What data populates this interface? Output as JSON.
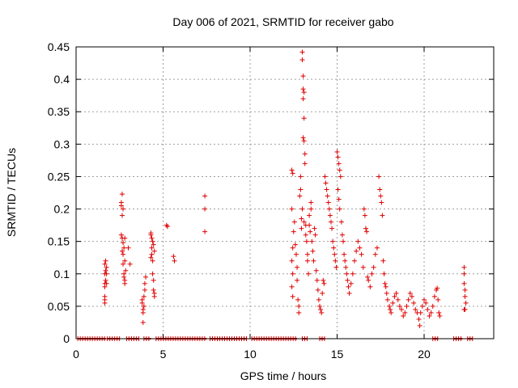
{
  "chart_data": {
    "type": "scatter",
    "title": "Day 006 of 2021, SRMTID for receiver gabo",
    "xlabel": "GPS time / hours",
    "ylabel": "SRMTID / TECUs",
    "xlim": [
      0,
      24
    ],
    "ylim": [
      0,
      0.45
    ],
    "xticks": [
      0,
      5,
      10,
      15,
      20
    ],
    "yticks": [
      0,
      0.05,
      0.1,
      0.15,
      0.2,
      0.25,
      0.3,
      0.35,
      0.4,
      0.45
    ],
    "ytick_labels": [
      "0",
      "0.05",
      "0.1",
      "0.15",
      "0.2",
      "0.25",
      "0.3",
      "0.35",
      "0.4",
      "0.45"
    ],
    "grid": true,
    "marker": "+",
    "color": "#e00000",
    "zero_runs": [
      [
        0.1,
        1.7
      ],
      [
        1.8,
        2.5
      ],
      [
        2.9,
        3.6
      ],
      [
        3.9,
        4.3
      ],
      [
        4.6,
        7.5
      ],
      [
        7.7,
        9.8
      ],
      [
        10.1,
        12.7
      ],
      [
        13.0,
        13.3
      ],
      [
        14.0,
        14.3
      ],
      [
        20.5,
        20.8
      ],
      [
        21.7,
        22.2
      ],
      [
        22.5,
        22.8
      ]
    ],
    "points": [
      [
        1.65,
        0.06
      ],
      [
        1.65,
        0.08
      ],
      [
        1.65,
        0.085
      ],
      [
        1.65,
        0.1
      ],
      [
        1.65,
        0.115
      ],
      [
        1.65,
        0.055
      ],
      [
        1.65,
        0.065
      ],
      [
        1.7,
        0.09
      ],
      [
        1.7,
        0.105
      ],
      [
        1.7,
        0.12
      ],
      [
        1.75,
        0.085
      ],
      [
        1.75,
        0.1
      ],
      [
        1.75,
        0.11
      ],
      [
        2.6,
        0.205
      ],
      [
        2.6,
        0.21
      ],
      [
        2.65,
        0.223
      ],
      [
        2.65,
        0.19
      ],
      [
        2.6,
        0.16
      ],
      [
        2.65,
        0.155
      ],
      [
        2.7,
        0.148
      ],
      [
        2.7,
        0.13
      ],
      [
        2.7,
        0.115
      ],
      [
        2.75,
        0.1
      ],
      [
        2.75,
        0.095
      ],
      [
        2.8,
        0.09
      ],
      [
        2.8,
        0.085
      ],
      [
        2.7,
        0.2
      ],
      [
        2.8,
        0.12
      ],
      [
        2.85,
        0.105
      ],
      [
        2.65,
        0.135
      ],
      [
        2.75,
        0.14
      ],
      [
        2.8,
        0.155
      ],
      [
        3.0,
        0.14
      ],
      [
        3.1,
        0.115
      ],
      [
        3.8,
        0.06
      ],
      [
        3.8,
        0.055
      ],
      [
        3.85,
        0.045
      ],
      [
        3.85,
        0.025
      ],
      [
        3.9,
        0.065
      ],
      [
        3.95,
        0.085
      ],
      [
        3.95,
        0.075
      ],
      [
        3.9,
        0.05
      ],
      [
        4.0,
        0.095
      ],
      [
        3.85,
        0.04
      ],
      [
        4.3,
        0.163
      ],
      [
        4.3,
        0.16
      ],
      [
        4.35,
        0.14
      ],
      [
        4.35,
        0.13
      ],
      [
        4.4,
        0.12
      ],
      [
        4.4,
        0.1
      ],
      [
        4.45,
        0.09
      ],
      [
        4.45,
        0.075
      ],
      [
        4.5,
        0.07
      ],
      [
        4.5,
        0.065
      ],
      [
        4.4,
        0.15
      ],
      [
        4.45,
        0.145
      ],
      [
        4.5,
        0.135
      ],
      [
        4.3,
        0.125
      ],
      [
        4.35,
        0.155
      ],
      [
        5.2,
        0.175
      ],
      [
        5.25,
        0.173
      ],
      [
        5.6,
        0.127
      ],
      [
        5.65,
        0.12
      ],
      [
        7.4,
        0.22
      ],
      [
        7.4,
        0.2
      ],
      [
        7.4,
        0.165
      ],
      [
        12.4,
        0.26
      ],
      [
        12.45,
        0.255
      ],
      [
        12.4,
        0.2
      ],
      [
        12.45,
        0.14
      ],
      [
        12.4,
        0.12
      ],
      [
        12.45,
        0.1
      ],
      [
        12.4,
        0.08
      ],
      [
        12.45,
        0.065
      ],
      [
        12.5,
        0.165
      ],
      [
        12.55,
        0.18
      ],
      [
        12.6,
        0.145
      ],
      [
        12.65,
        0.13
      ],
      [
        12.7,
        0.11
      ],
      [
        12.7,
        0.09
      ],
      [
        12.75,
        0.06
      ],
      [
        12.8,
        0.05
      ],
      [
        12.8,
        0.04
      ],
      [
        12.85,
        0.22
      ],
      [
        12.9,
        0.25
      ],
      [
        12.9,
        0.23
      ],
      [
        12.95,
        0.185
      ],
      [
        12.95,
        0.17
      ],
      [
        13.0,
        0.442
      ],
      [
        13.0,
        0.43
      ],
      [
        13.05,
        0.405
      ],
      [
        13.05,
        0.385
      ],
      [
        13.1,
        0.38
      ],
      [
        13.05,
        0.37
      ],
      [
        13.1,
        0.34
      ],
      [
        13.05,
        0.31
      ],
      [
        13.1,
        0.305
      ],
      [
        13.15,
        0.285
      ],
      [
        13.15,
        0.27
      ],
      [
        13.0,
        0.2
      ],
      [
        13.1,
        0.18
      ],
      [
        13.2,
        0.175
      ],
      [
        13.2,
        0.16
      ],
      [
        13.25,
        0.15
      ],
      [
        13.3,
        0.13
      ],
      [
        13.3,
        0.12
      ],
      [
        13.35,
        0.1
      ],
      [
        13.4,
        0.19
      ],
      [
        13.4,
        0.175
      ],
      [
        13.45,
        0.165
      ],
      [
        13.5,
        0.21
      ],
      [
        13.5,
        0.2
      ],
      [
        13.55,
        0.15
      ],
      [
        13.6,
        0.135
      ],
      [
        13.65,
        0.12
      ],
      [
        13.7,
        0.17
      ],
      [
        13.75,
        0.16
      ],
      [
        13.8,
        0.105
      ],
      [
        13.85,
        0.09
      ],
      [
        13.9,
        0.075
      ],
      [
        13.95,
        0.06
      ],
      [
        14.0,
        0.05
      ],
      [
        14.05,
        0.045
      ],
      [
        14.1,
        0.04
      ],
      [
        14.15,
        0.07
      ],
      [
        14.2,
        0.09
      ],
      [
        14.25,
        0.085
      ],
      [
        14.3,
        0.25
      ],
      [
        14.35,
        0.24
      ],
      [
        14.4,
        0.23
      ],
      [
        14.45,
        0.22
      ],
      [
        14.5,
        0.21
      ],
      [
        14.55,
        0.2
      ],
      [
        14.6,
        0.19
      ],
      [
        14.65,
        0.18
      ],
      [
        14.7,
        0.17
      ],
      [
        14.75,
        0.15
      ],
      [
        14.8,
        0.14
      ],
      [
        14.85,
        0.13
      ],
      [
        14.9,
        0.12
      ],
      [
        14.95,
        0.11
      ],
      [
        15.0,
        0.288
      ],
      [
        15.05,
        0.28
      ],
      [
        15.1,
        0.27
      ],
      [
        15.15,
        0.26
      ],
      [
        15.2,
        0.25
      ],
      [
        15.05,
        0.23
      ],
      [
        15.1,
        0.215
      ],
      [
        15.15,
        0.2
      ],
      [
        15.25,
        0.18
      ],
      [
        15.3,
        0.16
      ],
      [
        15.35,
        0.15
      ],
      [
        15.4,
        0.13
      ],
      [
        15.45,
        0.12
      ],
      [
        15.5,
        0.11
      ],
      [
        15.55,
        0.1
      ],
      [
        15.6,
        0.09
      ],
      [
        15.65,
        0.08
      ],
      [
        15.7,
        0.07
      ],
      [
        15.8,
        0.085
      ],
      [
        15.9,
        0.1
      ],
      [
        16.0,
        0.12
      ],
      [
        16.1,
        0.135
      ],
      [
        16.2,
        0.15
      ],
      [
        16.3,
        0.14
      ],
      [
        16.4,
        0.13
      ],
      [
        16.5,
        0.11
      ],
      [
        16.55,
        0.2
      ],
      [
        16.6,
        0.19
      ],
      [
        16.65,
        0.17
      ],
      [
        16.7,
        0.165
      ],
      [
        16.75,
        0.095
      ],
      [
        16.8,
        0.09
      ],
      [
        16.9,
        0.08
      ],
      [
        17.0,
        0.1
      ],
      [
        17.1,
        0.11
      ],
      [
        17.2,
        0.13
      ],
      [
        17.3,
        0.14
      ],
      [
        17.4,
        0.25
      ],
      [
        17.45,
        0.23
      ],
      [
        17.5,
        0.22
      ],
      [
        17.55,
        0.21
      ],
      [
        17.6,
        0.19
      ],
      [
        17.65,
        0.12
      ],
      [
        17.7,
        0.1
      ],
      [
        17.75,
        0.085
      ],
      [
        17.8,
        0.08
      ],
      [
        17.85,
        0.07
      ],
      [
        17.9,
        0.06
      ],
      [
        18.0,
        0.05
      ],
      [
        18.05,
        0.045
      ],
      [
        18.1,
        0.04
      ],
      [
        18.2,
        0.055
      ],
      [
        18.3,
        0.065
      ],
      [
        18.4,
        0.07
      ],
      [
        18.5,
        0.06
      ],
      [
        18.6,
        0.05
      ],
      [
        18.7,
        0.045
      ],
      [
        18.8,
        0.035
      ],
      [
        18.9,
        0.04
      ],
      [
        19.0,
        0.05
      ],
      [
        19.1,
        0.06
      ],
      [
        19.2,
        0.07
      ],
      [
        19.3,
        0.065
      ],
      [
        19.4,
        0.055
      ],
      [
        19.5,
        0.045
      ],
      [
        19.6,
        0.04
      ],
      [
        19.7,
        0.03
      ],
      [
        19.75,
        0.02
      ],
      [
        19.8,
        0.04
      ],
      [
        19.9,
        0.05
      ],
      [
        20.0,
        0.06
      ],
      [
        20.1,
        0.055
      ],
      [
        20.2,
        0.045
      ],
      [
        20.3,
        0.035
      ],
      [
        20.4,
        0.04
      ],
      [
        20.5,
        0.05
      ],
      [
        20.6,
        0.065
      ],
      [
        20.7,
        0.075
      ],
      [
        20.75,
        0.078
      ],
      [
        20.8,
        0.06
      ],
      [
        20.85,
        0.04
      ],
      [
        20.9,
        0.035
      ],
      [
        22.3,
        0.11
      ],
      [
        22.3,
        0.1
      ],
      [
        22.3,
        0.085
      ],
      [
        22.35,
        0.075
      ],
      [
        22.35,
        0.065
      ],
      [
        22.4,
        0.055
      ],
      [
        22.35,
        0.045
      ],
      [
        22.3,
        0.045
      ]
    ]
  }
}
